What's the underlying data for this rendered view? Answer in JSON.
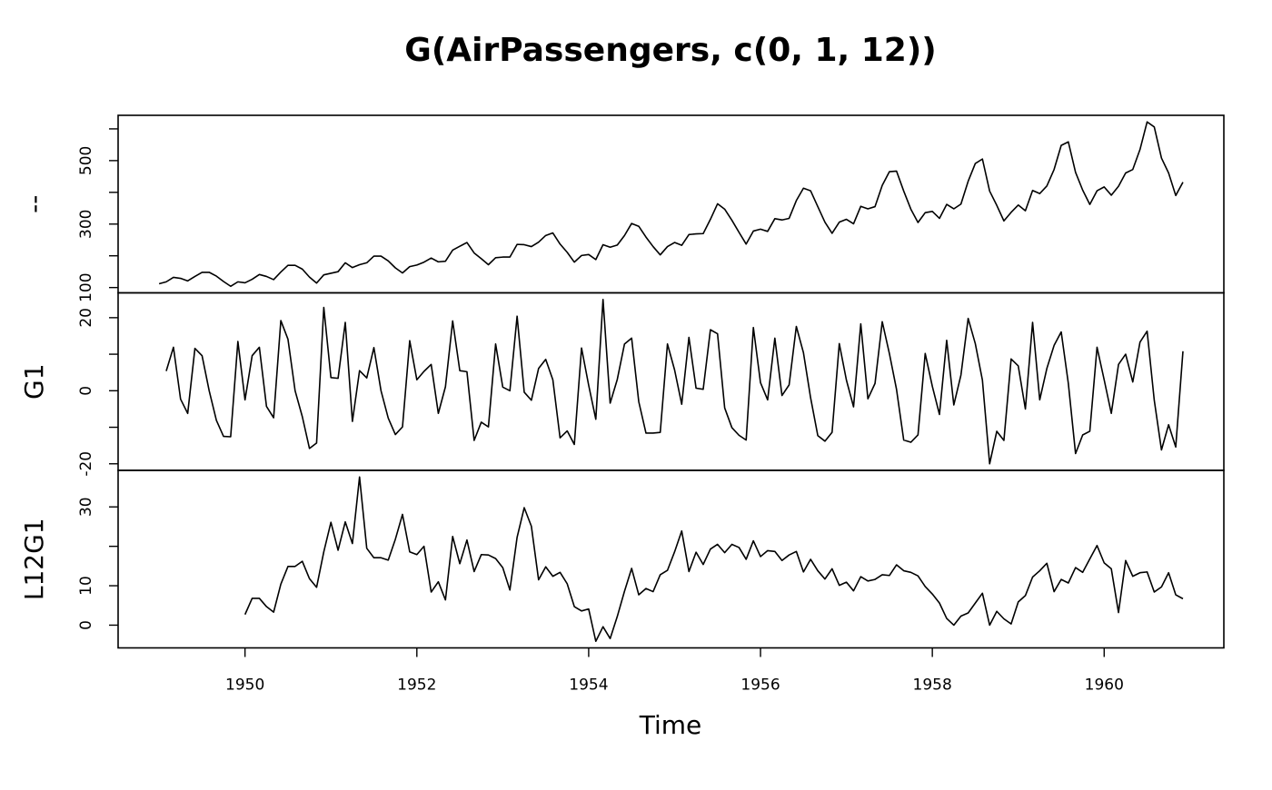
{
  "chart_data": {
    "type": "line",
    "title": "G(AirPassengers, c(0, 1, 12))",
    "x_label": "Time",
    "color": "#000000",
    "xlim": [
      1948.523,
      1961.393
    ],
    "xticks": [
      1950,
      1952,
      1954,
      1956,
      1958,
      1960
    ],
    "x": [
      1949,
      1949.083,
      1949.167,
      1949.25,
      1949.333,
      1949.417,
      1949.5,
      1949.583,
      1949.667,
      1949.75,
      1949.833,
      1949.917,
      1950,
      1950.083,
      1950.167,
      1950.25,
      1950.333,
      1950.417,
      1950.5,
      1950.583,
      1950.667,
      1950.75,
      1950.833,
      1950.917,
      1951,
      1951.083,
      1951.167,
      1951.25,
      1951.333,
      1951.417,
      1951.5,
      1951.583,
      1951.667,
      1951.75,
      1951.833,
      1951.917,
      1952,
      1952.083,
      1952.167,
      1952.25,
      1952.333,
      1952.417,
      1952.5,
      1952.583,
      1952.667,
      1952.75,
      1952.833,
      1952.917,
      1953,
      1953.083,
      1953.167,
      1953.25,
      1953.333,
      1953.417,
      1953.5,
      1953.583,
      1953.667,
      1953.75,
      1953.833,
      1953.917,
      1954,
      1954.083,
      1954.167,
      1954.25,
      1954.333,
      1954.417,
      1954.5,
      1954.583,
      1954.667,
      1954.75,
      1954.833,
      1954.917,
      1955,
      1955.083,
      1955.167,
      1955.25,
      1955.333,
      1955.417,
      1955.5,
      1955.583,
      1955.667,
      1955.75,
      1955.833,
      1955.917,
      1956,
      1956.083,
      1956.167,
      1956.25,
      1956.333,
      1956.417,
      1956.5,
      1956.583,
      1956.667,
      1956.75,
      1956.833,
      1956.917,
      1957,
      1957.083,
      1957.167,
      1957.25,
      1957.333,
      1957.417,
      1957.5,
      1957.583,
      1957.667,
      1957.75,
      1957.833,
      1957.917,
      1958,
      1958.083,
      1958.167,
      1958.25,
      1958.333,
      1958.417,
      1958.5,
      1958.583,
      1958.667,
      1958.75,
      1958.833,
      1958.917,
      1959,
      1959.083,
      1959.167,
      1959.25,
      1959.333,
      1959.417,
      1959.5,
      1959.583,
      1959.667,
      1959.75,
      1959.833,
      1959.917,
      1960,
      1960.083,
      1960.167,
      1960.25,
      1960.333,
      1960.417,
      1960.5,
      1960.583,
      1960.667,
      1960.75,
      1960.833,
      1960.917
    ],
    "panels": [
      {
        "y_label": "--",
        "ylim": [
          83.3,
          642.7
        ],
        "yticks": [
          100,
          300,
          500
        ],
        "yminor_ticks": [
          200,
          400,
          600
        ],
        "values": [
          112,
          118,
          132,
          129,
          121,
          135,
          148,
          148,
          136,
          119,
          104,
          118,
          115,
          126,
          141,
          135,
          125,
          149,
          170,
          170,
          158,
          133,
          114,
          140,
          145,
          150,
          178,
          163,
          172,
          178,
          199,
          199,
          184,
          162,
          146,
          166,
          171,
          180,
          193,
          181,
          183,
          218,
          230,
          242,
          209,
          191,
          172,
          194,
          196,
          196,
          236,
          235,
          229,
          243,
          264,
          272,
          237,
          211,
          180,
          201,
          204,
          188,
          235,
          227,
          234,
          264,
          302,
          293,
          259,
          229,
          203,
          229,
          242,
          233,
          267,
          269,
          270,
          315,
          364,
          347,
          312,
          274,
          237,
          278,
          284,
          277,
          317,
          313,
          318,
          374,
          413,
          405,
          355,
          306,
          271,
          306,
          315,
          301,
          356,
          348,
          355,
          422,
          465,
          467,
          404,
          347,
          305,
          336,
          340,
          318,
          362,
          348,
          363,
          435,
          491,
          505,
          404,
          359,
          310,
          337,
          360,
          342,
          406,
          396,
          420,
          472,
          548,
          559,
          463,
          407,
          362,
          405,
          417,
          391,
          419,
          461,
          472,
          535,
          622,
          606,
          508,
          461,
          390,
          432
        ]
      },
      {
        "y_label": "G1",
        "ylim": [
          -21.8,
          26.8
        ],
        "yticks": [
          -20,
          0,
          20
        ],
        "yminor_ticks": [
          -10,
          10
        ],
        "values": [
          null,
          5.4,
          11.9,
          -2.3,
          -6.2,
          11.6,
          9.6,
          0,
          -8.1,
          -12.5,
          -12.6,
          13.5,
          -2.5,
          9.6,
          11.9,
          -4.3,
          -7.4,
          19.2,
          14.1,
          0,
          -7.1,
          -15.8,
          -14.3,
          22.8,
          3.6,
          3.4,
          18.7,
          -8.4,
          5.5,
          3.5,
          11.8,
          0,
          -7.5,
          -12.0,
          -9.9,
          13.7,
          3.0,
          5.3,
          7.2,
          -6.2,
          1.1,
          19.1,
          5.5,
          5.2,
          -13.6,
          -8.6,
          -9.9,
          12.8,
          1.0,
          0,
          20.4,
          -0.4,
          -2.6,
          6.1,
          8.6,
          3.0,
          -12.9,
          -11.0,
          -14.7,
          11.7,
          1.5,
          -7.8,
          25.0,
          -3.4,
          3.1,
          12.8,
          14.4,
          -3.0,
          -11.6,
          -11.6,
          -11.4,
          12.8,
          5.7,
          -3.7,
          14.6,
          0.7,
          0.4,
          16.7,
          15.6,
          -4.7,
          -10.1,
          -12.2,
          -13.5,
          17.3,
          2.2,
          -2.5,
          14.4,
          -1.3,
          1.6,
          17.6,
          10.4,
          -1.9,
          -12.3,
          -13.8,
          -11.4,
          12.9,
          2.9,
          -4.4,
          18.3,
          -2.2,
          2.0,
          18.9,
          10.2,
          0.4,
          -13.5,
          -14.1,
          -12.1,
          10.2,
          1.2,
          -6.5,
          13.8,
          -3.9,
          4.3,
          19.8,
          12.9,
          2.9,
          -20.0,
          -11.1,
          -13.6,
          8.7,
          6.8,
          -5.0,
          18.7,
          -2.5,
          6.1,
          12.4,
          16.1,
          2.0,
          -17.2,
          -12.1,
          -11.1,
          11.9,
          3.0,
          -6.2,
          7.2,
          10.0,
          2.4,
          13.3,
          16.3,
          -2.6,
          -16.2,
          -9.3,
          -15.4,
          10.8
        ]
      },
      {
        "y_label": "L12G1",
        "ylim": [
          -5.77,
          39.27
        ],
        "yticks": [
          0,
          10,
          30
        ],
        "yminor_ticks": [
          20
        ],
        "values": [
          null,
          null,
          null,
          null,
          null,
          null,
          null,
          null,
          null,
          null,
          null,
          null,
          2.7,
          6.8,
          6.8,
          4.7,
          3.3,
          10.4,
          14.9,
          14.9,
          16.2,
          11.8,
          9.6,
          18.6,
          26.1,
          19.0,
          26.2,
          20.7,
          37.6,
          19.5,
          17.1,
          17.1,
          16.5,
          21.8,
          28.1,
          18.6,
          17.9,
          20.0,
          8.4,
          11.0,
          6.4,
          22.5,
          15.6,
          21.6,
          13.6,
          17.9,
          17.8,
          16.9,
          14.6,
          8.9,
          22.3,
          29.8,
          25.1,
          11.5,
          14.8,
          12.4,
          13.4,
          10.5,
          4.7,
          3.6,
          4.1,
          -4.1,
          -0.4,
          -3.4,
          2.2,
          8.6,
          14.4,
          7.7,
          9.3,
          8.5,
          12.8,
          13.9,
          18.6,
          23.9,
          13.6,
          18.5,
          15.4,
          19.3,
          20.5,
          18.4,
          20.5,
          19.7,
          16.7,
          21.4,
          17.4,
          18.9,
          18.7,
          16.4,
          17.8,
          18.7,
          13.5,
          16.7,
          13.8,
          11.7,
          14.3,
          10.1,
          10.9,
          8.7,
          12.3,
          11.2,
          11.6,
          12.8,
          12.6,
          15.3,
          13.8,
          13.4,
          12.5,
          9.8,
          7.9,
          5.6,
          1.7,
          0,
          2.3,
          3.1,
          5.6,
          8.1,
          0,
          3.5,
          1.6,
          0.3,
          5.9,
          7.5,
          12.2,
          13.8,
          15.7,
          8.5,
          11.6,
          10.7,
          14.6,
          13.4,
          16.8,
          20.2,
          15.8,
          14.3,
          3.2,
          16.4,
          12.4,
          13.3,
          13.5,
          8.4,
          9.7,
          13.3,
          7.7,
          6.7
        ]
      }
    ]
  }
}
